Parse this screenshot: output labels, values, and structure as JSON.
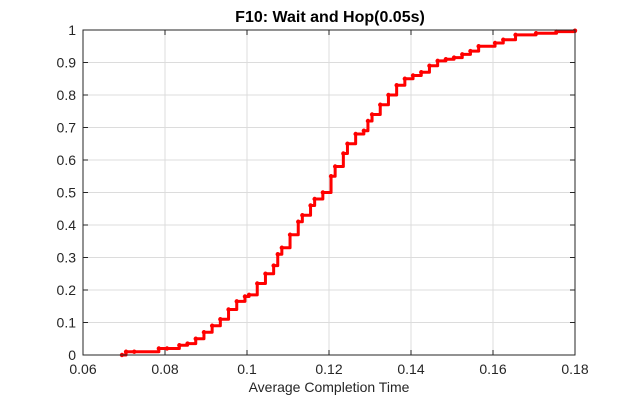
{
  "chart_data": {
    "type": "line",
    "title": "F10: Wait and Hop(0.05s)",
    "xlabel": "Average Completion Time",
    "ylabel": "",
    "xlim": [
      0.06,
      0.18
    ],
    "ylim": [
      0,
      1
    ],
    "xticks": [
      "0.06",
      "0.08",
      "0.1",
      "0.12",
      "0.14",
      "0.16",
      "0.18"
    ],
    "yticks": [
      "0",
      "0.1",
      "0.2",
      "0.3",
      "0.4",
      "0.5",
      "0.6",
      "0.7",
      "0.8",
      "0.9",
      "1"
    ],
    "grid": true,
    "series": [
      {
        "color": "#ff0000",
        "x": [
          0.0695,
          0.0705,
          0.0725,
          0.0785,
          0.0805,
          0.0835,
          0.0855,
          0.0875,
          0.0895,
          0.0915,
          0.0935,
          0.0955,
          0.0975,
          0.0995,
          0.1005,
          0.1025,
          0.1045,
          0.1065,
          0.1075,
          0.1085,
          0.1105,
          0.1125,
          0.1135,
          0.1155,
          0.1165,
          0.1185,
          0.1205,
          0.1215,
          0.1235,
          0.1245,
          0.1265,
          0.1285,
          0.1295,
          0.1305,
          0.1325,
          0.1345,
          0.1365,
          0.1385,
          0.1405,
          0.1425,
          0.1445,
          0.1465,
          0.1485,
          0.1505,
          0.1525,
          0.1545,
          0.1565,
          0.1605,
          0.1625,
          0.1655,
          0.1705,
          0.1755,
          0.18
        ],
        "y": [
          0.0,
          0.01,
          0.01,
          0.02,
          0.02,
          0.03,
          0.035,
          0.05,
          0.07,
          0.09,
          0.11,
          0.14,
          0.165,
          0.18,
          0.185,
          0.22,
          0.25,
          0.275,
          0.31,
          0.33,
          0.37,
          0.41,
          0.43,
          0.46,
          0.48,
          0.5,
          0.55,
          0.58,
          0.62,
          0.65,
          0.68,
          0.69,
          0.72,
          0.74,
          0.77,
          0.8,
          0.83,
          0.85,
          0.86,
          0.87,
          0.89,
          0.905,
          0.91,
          0.915,
          0.925,
          0.935,
          0.95,
          0.96,
          0.97,
          0.985,
          0.99,
          0.995,
          0.998
        ]
      }
    ]
  }
}
